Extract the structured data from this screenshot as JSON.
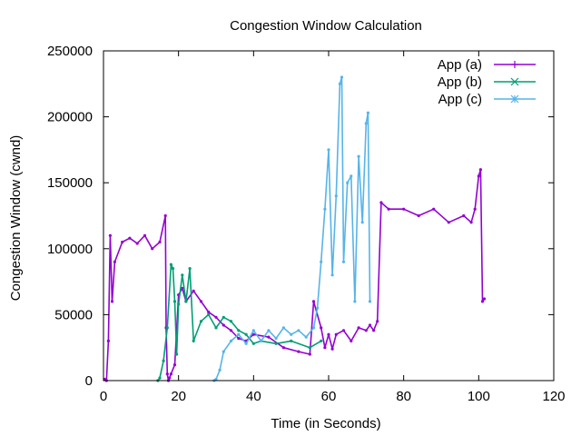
{
  "chart_data": {
    "type": "line",
    "title": "Congestion Window Calculation",
    "xlabel": "Time (in Seconds)",
    "ylabel": "Congestion Window (cwnd)",
    "xlim": [
      0,
      120
    ],
    "ylim": [
      0,
      250000
    ],
    "xticks": [
      "0",
      "20",
      "40",
      "60",
      "80",
      "100",
      "120"
    ],
    "yticks": [
      "0",
      "50000",
      "100000",
      "150000",
      "200000",
      "250000"
    ],
    "grid": false,
    "legend_position": "top-right",
    "series": [
      {
        "name": "App (a)",
        "color": "#9400d3",
        "marker": "plus",
        "x": [
          0.3,
          0.8,
          1.3,
          1.8,
          2.3,
          3,
          5,
          7,
          9,
          11,
          13,
          15,
          16.5,
          16.7,
          17,
          17.3,
          17.6,
          18,
          19,
          20,
          21,
          22,
          24,
          26,
          28,
          30,
          32,
          34,
          36,
          38,
          40,
          44,
          48,
          52,
          55,
          56,
          58,
          59,
          60,
          61,
          62,
          64,
          66,
          68,
          70,
          71,
          72,
          73,
          74,
          76,
          80,
          84,
          88,
          92,
          96,
          98,
          99,
          100,
          100.5,
          101,
          101.5
        ],
        "y": [
          1000,
          0,
          30000,
          110000,
          60000,
          90000,
          105000,
          108000,
          104000,
          110000,
          100000,
          105000,
          125000,
          40000,
          5000,
          0,
          2000,
          5000,
          12000,
          65000,
          70000,
          60000,
          68000,
          60000,
          52000,
          48000,
          42000,
          38000,
          32000,
          30000,
          35000,
          33000,
          25000,
          22000,
          20000,
          60000,
          40000,
          25000,
          35000,
          24000,
          35000,
          38000,
          30000,
          40000,
          38000,
          42000,
          38000,
          45000,
          135000,
          130000,
          130000,
          125000,
          130000,
          120000,
          125000,
          120000,
          130000,
          155000,
          160000,
          60000,
          62000
        ]
      },
      {
        "name": "App (b)",
        "color": "#009e73",
        "marker": "x",
        "x": [
          14.5,
          15,
          16,
          17,
          18,
          18.5,
          19,
          19.5,
          20,
          21,
          22,
          23,
          24,
          26,
          28,
          30,
          32,
          34,
          36,
          38,
          40,
          42,
          46,
          50,
          55,
          58
        ],
        "y": [
          0,
          2000,
          15000,
          40000,
          88000,
          85000,
          60000,
          20000,
          58000,
          80000,
          60000,
          85000,
          30000,
          45000,
          50000,
          40000,
          48000,
          45000,
          38000,
          35000,
          28000,
          30000,
          28000,
          30000,
          25000,
          30000
        ]
      },
      {
        "name": "App (c)",
        "color": "#56b4e9",
        "marker": "star",
        "x": [
          29.5,
          30,
          31,
          32,
          34,
          36,
          38,
          40,
          42,
          44,
          46,
          48,
          50,
          52,
          54,
          56,
          57,
          58,
          59,
          60,
          61,
          62,
          63,
          63.5,
          64,
          65,
          66,
          67,
          68,
          69,
          70,
          70.5,
          71
        ],
        "y": [
          0,
          1000,
          8000,
          22000,
          30000,
          35000,
          28000,
          38000,
          30000,
          38000,
          32000,
          40000,
          35000,
          38000,
          33000,
          40000,
          55000,
          90000,
          130000,
          175000,
          80000,
          140000,
          225000,
          230000,
          90000,
          150000,
          155000,
          60000,
          170000,
          120000,
          195000,
          203000,
          60000
        ]
      }
    ]
  }
}
